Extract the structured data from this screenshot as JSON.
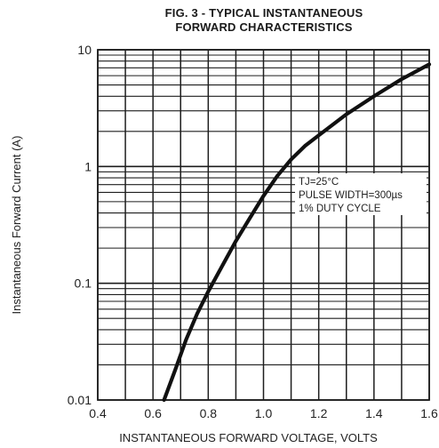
{
  "chart_data": {
    "type": "line",
    "title_lines": [
      "FIG. 3 - TYPICAL INSTANTANEOUS",
      "FORWARD CHARACTERISTICS"
    ],
    "xlabel": "INSTANTANEOUS FORWARD VOLTAGE, VOLTS",
    "ylabel": "Instantaneous Forward Current (A)",
    "xlim": [
      0.4,
      1.6
    ],
    "ylim": [
      0.01,
      10
    ],
    "yscale": "log",
    "grid": true,
    "x_ticks": [
      0.4,
      0.6,
      0.8,
      1.0,
      1.2,
      1.4,
      1.6
    ],
    "x_tick_labels": [
      "0.4",
      "0.6",
      "0.8",
      "1.0",
      "1.2",
      "1.4",
      "1.6"
    ],
    "y_ticks": [
      0.01,
      0.1,
      1,
      10
    ],
    "y_tick_labels": [
      "0.01",
      "0.1",
      "1",
      "10"
    ],
    "annotations": [
      "TJ=25°C",
      "PULSE WIDTH=300µs",
      "1% DUTY CYCLE"
    ],
    "series": [
      {
        "x": [
          0.64,
          0.68,
          0.72,
          0.76,
          0.8,
          0.85,
          0.9,
          0.95,
          1.0,
          1.05,
          1.1,
          1.15,
          1.2,
          1.3,
          1.4,
          1.5,
          1.6
        ],
        "y": [
          0.01,
          0.018,
          0.033,
          0.055,
          0.085,
          0.14,
          0.23,
          0.36,
          0.56,
          0.83,
          1.15,
          1.5,
          1.85,
          2.8,
          4.0,
          5.6,
          7.5
        ]
      }
    ]
  }
}
